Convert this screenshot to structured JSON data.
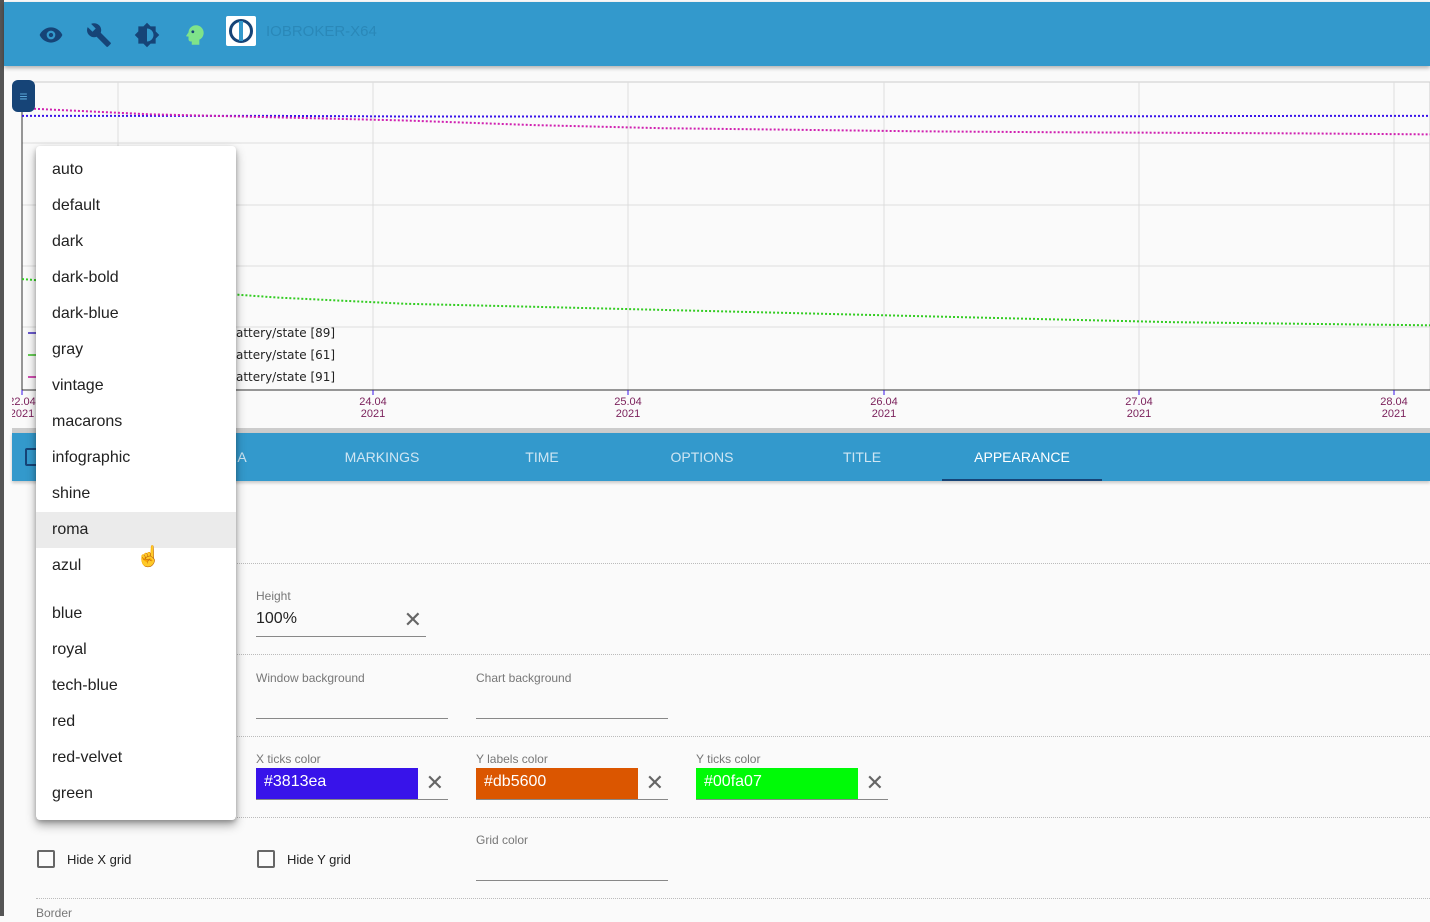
{
  "header": {
    "host": "IOBROKER-X64",
    "icons": [
      "eye-icon",
      "wrench-icon",
      "brightness-icon",
      "head-icon",
      "iobroker-logo"
    ]
  },
  "chart_data": {
    "type": "line",
    "x_ticks": [
      {
        "d": "22.04",
        "y": "2021"
      },
      {
        "d": "24.04",
        "y": "2021"
      },
      {
        "d": "25.04",
        "y": "2021"
      },
      {
        "d": "26.04",
        "y": "2021"
      },
      {
        "d": "27.04",
        "y": "2021"
      },
      {
        "d": "28.04",
        "y": "2021"
      }
    ],
    "ylim": [
      0,
      100
    ],
    "legend": [
      "attery/state [89]",
      "attery/state [61]",
      "attery/state [91]"
    ],
    "series": [
      {
        "name": "blue",
        "color": "#3813ea",
        "values": [
          89,
          89,
          89,
          88.8,
          88.8,
          88.7,
          88.7,
          88.8,
          88.9,
          88.9,
          89,
          89
        ]
      },
      {
        "name": "magenta",
        "color": "#d020b0",
        "values": [
          91.5,
          89.5,
          88.5,
          87.5,
          86,
          85,
          84.5,
          84,
          83.7,
          83.5,
          83.3,
          83
        ]
      },
      {
        "name": "green",
        "color": "#33cc22",
        "values": [
          36,
          33,
          30,
          28,
          27,
          26,
          25,
          24,
          23,
          22,
          21.5,
          21
        ]
      }
    ]
  },
  "tabs": [
    "A",
    "MARKINGS",
    "TIME",
    "OPTIONS",
    "TITLE",
    "APPEARANCE"
  ],
  "active_tab": "APPEARANCE",
  "dropdown": {
    "options": [
      "auto",
      "default",
      "dark",
      "dark-bold",
      "dark-blue",
      "gray",
      "vintage",
      "macarons",
      "infographic",
      "shine",
      "roma",
      "azul",
      "blue",
      "royal",
      "tech-blue",
      "red",
      "red-velvet",
      "green"
    ],
    "hovered": "roma"
  },
  "form": {
    "height": {
      "label": "Height",
      "value": "100%"
    },
    "window_bg": {
      "label": "Window background",
      "value": ""
    },
    "chart_bg": {
      "label": "Chart background",
      "value": ""
    },
    "x_ticks_color": {
      "label": "X ticks color",
      "value": "#3813ea"
    },
    "y_labels_color": {
      "label": "Y labels color",
      "value": "#db5600"
    },
    "y_ticks_color": {
      "label": "Y ticks color",
      "value": "#00fa07"
    },
    "hide_x_grid": {
      "label": "Hide X grid",
      "checked": false
    },
    "hide_y_grid": {
      "label": "Hide Y grid",
      "checked": false
    },
    "grid_color": {
      "label": "Grid color",
      "value": ""
    },
    "border": {
      "label": "Border"
    }
  }
}
